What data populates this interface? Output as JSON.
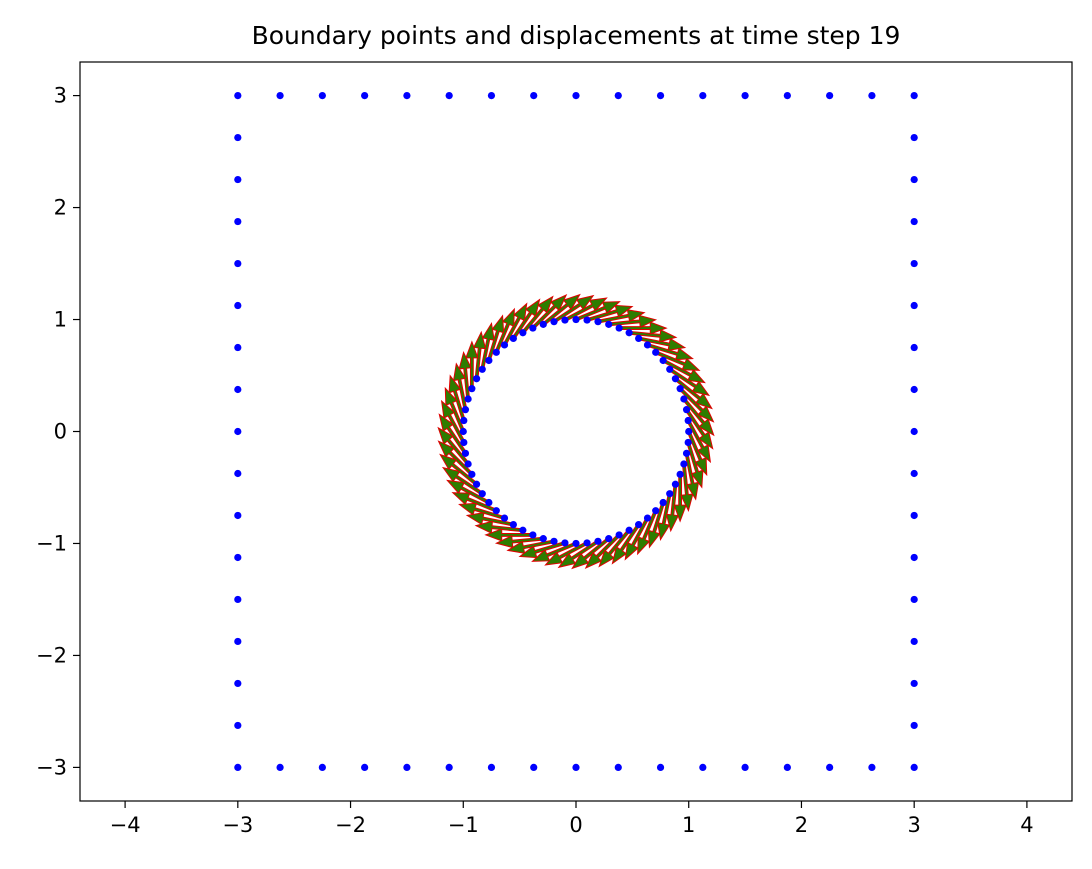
{
  "chart_data": {
    "type": "scatter",
    "title": "Boundary points and displacements at time step 19",
    "xlabel": "",
    "ylabel": "",
    "xlim": [
      -4.4,
      4.4
    ],
    "ylim": [
      -3.3,
      3.3
    ],
    "x_ticks": [
      -4,
      -3,
      -2,
      -1,
      0,
      1,
      2,
      3,
      4
    ],
    "x_tick_labels": [
      "−4",
      "−3",
      "−2",
      "−1",
      "0",
      "1",
      "2",
      "3",
      "4"
    ],
    "y_ticks": [
      -3,
      -2,
      -1,
      0,
      1,
      2,
      3
    ],
    "y_tick_labels": [
      "−3",
      "−2",
      "−1",
      "0",
      "1",
      "2",
      "3"
    ],
    "grid": false,
    "colors": {
      "points": "#0000ff",
      "arrow_fill": "#2e7d00",
      "arrow_edge": "#e00000"
    },
    "outer_boundary": {
      "shape": "square",
      "x_range": [
        -3,
        3
      ],
      "y_range": [
        -3,
        3
      ],
      "points_per_side": 17,
      "spacing": 0.375
    },
    "inner_boundary": {
      "shape": "circle",
      "center": [
        0,
        0
      ],
      "radius": 1.0,
      "n_points": 64
    },
    "displacements": {
      "applies_to": "inner_boundary",
      "kind": "rotation",
      "direction": "clockwise",
      "approx_magnitude": 0.42
    }
  }
}
